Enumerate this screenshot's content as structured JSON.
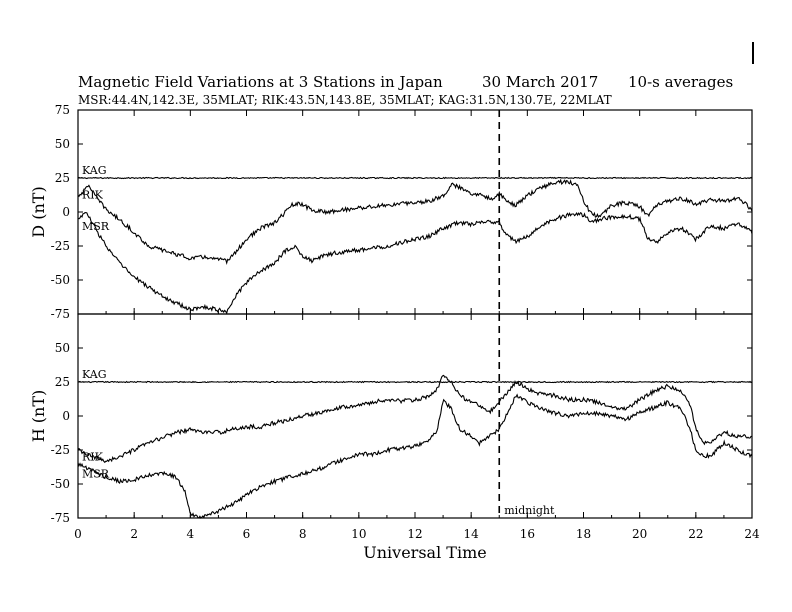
{
  "chart_data": {
    "type": "line",
    "title": "Magnetic Field Variations at 3 Stations in Japan",
    "date_text": "30 March   2017",
    "averaging_text": "10-s averages",
    "subtitle": "MSR:44.4N,142.3E, 35MLAT;  RIK:43.5N,143.8E, 35MLAT;  KAG:31.5N,130.7E, 22MLAT",
    "xlabel": "Universal Time",
    "xlim": [
      0,
      24
    ],
    "xticks": [
      "0",
      "2",
      "4",
      "6",
      "8",
      "10",
      "12",
      "14",
      "16",
      "18",
      "20",
      "22",
      "24"
    ],
    "midnight_x": 15,
    "midnight_label": "midnight",
    "panels": [
      {
        "ylabel": "D (nT)",
        "ylim": [
          -75,
          75
        ],
        "yticks": [
          "75",
          "50",
          "25",
          "0",
          "-25",
          "-50",
          "-75"
        ],
        "series": [
          {
            "name": "KAG",
            "x": [
              0,
              24
            ],
            "y": [
              25,
              25
            ]
          },
          {
            "name": "RIK",
            "x": [
              0,
              0.2,
              0.4,
              0.6,
              1,
              1.5,
              2,
              2.5,
              3,
              3.5,
              4,
              4.5,
              5,
              5.3,
              5.6,
              6,
              6.5,
              7,
              7.3,
              7.6,
              7.9,
              8.1,
              8.4,
              8.8,
              9.2,
              10,
              11,
              12,
              12.5,
              13,
              13.3,
              13.6,
              14,
              14.4,
              14.8,
              15,
              15.3,
              15.6,
              16,
              16.5,
              17,
              17.5,
              17.8,
              18,
              18.3,
              18.6,
              19,
              19.5,
              20,
              20.3,
              20.6,
              21,
              21.5,
              22,
              22.5,
              23,
              23.5,
              24
            ],
            "y": [
              12,
              15,
              20,
              12,
              2,
              -6,
              -15,
              -25,
              -28,
              -31,
              -34,
              -33,
              -35,
              -36,
              -30,
              -20,
              -12,
              -8,
              -2,
              5,
              6,
              4,
              1,
              0,
              1,
              3,
              5,
              7,
              8,
              12,
              20,
              18,
              14,
              12,
              10,
              14,
              7,
              5,
              12,
              18,
              22,
              22,
              20,
              8,
              -2,
              -3,
              5,
              7,
              4,
              -3,
              5,
              8,
              10,
              6,
              9,
              8,
              10,
              2
            ]
          },
          {
            "name": "MSR",
            "x": [
              0,
              0.3,
              0.5,
              1,
              1.5,
              2,
              2.5,
              3,
              3.5,
              4,
              4.3,
              4.6,
              5,
              5.3,
              5.6,
              6,
              6.5,
              7,
              7.3,
              7.7,
              8,
              8.3,
              8.8,
              9.2,
              10,
              11,
              12,
              12.5,
              13,
              13.5,
              14,
              14.5,
              15,
              15.3,
              15.6,
              16,
              16.5,
              17,
              17.5,
              18,
              18.3,
              18.6,
              19,
              19.5,
              20,
              20.3,
              20.6,
              21,
              21.5,
              22,
              22.5,
              23,
              23.5,
              24
            ],
            "y": [
              -5,
              0,
              -8,
              -25,
              -38,
              -48,
              -55,
              -62,
              -67,
              -72,
              -70,
              -70,
              -72,
              -73,
              -62,
              -52,
              -43,
              -38,
              -30,
              -25,
              -32,
              -36,
              -32,
              -30,
              -28,
              -25,
              -20,
              -18,
              -12,
              -8,
              -9,
              -7,
              -8,
              -18,
              -22,
              -18,
              -10,
              -5,
              -2,
              -2,
              -8,
              -5,
              -4,
              -3,
              -5,
              -20,
              -22,
              -15,
              -12,
              -20,
              -10,
              -12,
              -8,
              -15
            ]
          }
        ]
      },
      {
        "ylabel": "H (nT)",
        "ylim": [
          -75,
          75
        ],
        "yticks": [
          "75",
          "50",
          "25",
          "0",
          "-25",
          "-50",
          "-75"
        ],
        "series": [
          {
            "name": "KAG",
            "x": [
              0,
              24
            ],
            "y": [
              25,
              25
            ]
          },
          {
            "name": "RIK",
            "x": [
              0,
              0.5,
              1,
              1.5,
              2,
              2.5,
              3,
              3.5,
              4,
              4.5,
              5,
              5.5,
              6,
              6.5,
              7,
              7.5,
              8,
              8.5,
              9,
              9.5,
              10,
              10.5,
              11,
              11.5,
              12,
              12.5,
              12.8,
              13,
              13.3,
              13.6,
              14,
              14.3,
              14.6,
              15,
              15.3,
              15.6,
              16,
              16.5,
              17,
              17.5,
              18,
              18.5,
              19,
              19.5,
              20,
              20.5,
              21,
              21.5,
              21.8,
              22,
              22.3,
              22.6,
              23,
              23.5,
              24
            ],
            "y": [
              -25,
              -30,
              -33,
              -30,
              -25,
              -20,
              -16,
              -12,
              -10,
              -12,
              -12,
              -10,
              -8,
              -8,
              -5,
              -3,
              0,
              2,
              5,
              7,
              8,
              10,
              12,
              11,
              12,
              14,
              20,
              30,
              25,
              15,
              10,
              8,
              2,
              10,
              18,
              25,
              20,
              16,
              15,
              12,
              12,
              10,
              7,
              5,
              12,
              18,
              22,
              18,
              8,
              -10,
              -20,
              -18,
              -12,
              -15,
              -15
            ]
          },
          {
            "name": "MSR",
            "x": [
              0,
              0.5,
              1,
              1.5,
              2,
              2.5,
              3,
              3.5,
              3.8,
              4,
              4.3,
              4.6,
              5,
              5.5,
              6,
              6.5,
              7,
              7.5,
              8,
              8.5,
              9,
              9.5,
              10,
              10.5,
              11,
              11.5,
              12,
              12.5,
              12.8,
              13,
              13.3,
              13.6,
              14,
              14.3,
              14.6,
              15,
              15.3,
              15.6,
              16,
              16.5,
              17,
              17.5,
              18,
              18.5,
              19,
              19.5,
              20,
              20.5,
              21,
              21.5,
              21.8,
              22,
              22.3,
              22.6,
              23,
              23.5,
              24
            ],
            "y": [
              -35,
              -40,
              -45,
              -48,
              -47,
              -44,
              -42,
              -45,
              -55,
              -72,
              -75,
              -73,
              -70,
              -65,
              -58,
              -52,
              -48,
              -45,
              -42,
              -40,
              -35,
              -32,
              -28,
              -28,
              -25,
              -24,
              -22,
              -18,
              -10,
              12,
              5,
              -10,
              -15,
              -20,
              -15,
              -10,
              2,
              15,
              10,
              5,
              2,
              0,
              2,
              2,
              0,
              -3,
              3,
              6,
              10,
              5,
              -10,
              -25,
              -30,
              -28,
              -20,
              -25,
              -30
            ]
          }
        ]
      }
    ]
  }
}
